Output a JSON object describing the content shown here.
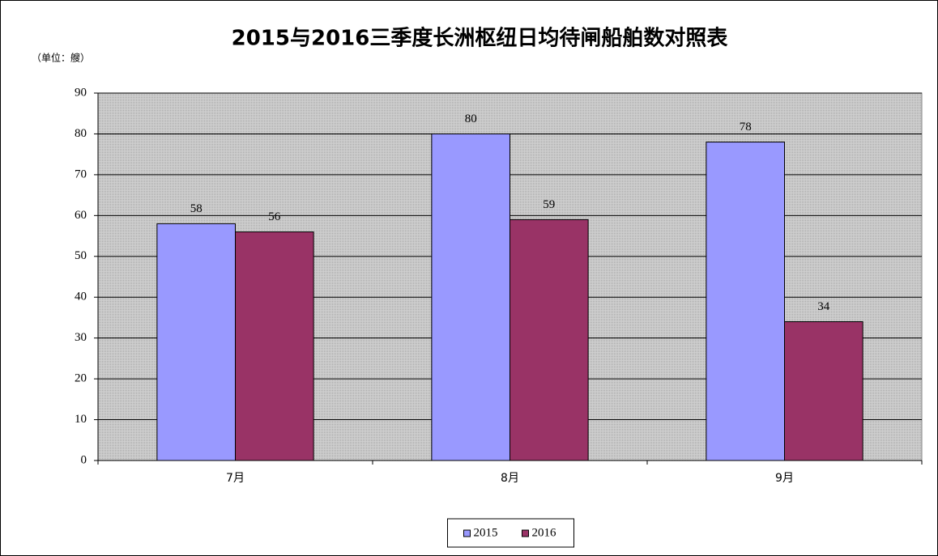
{
  "chart_data": {
    "type": "bar",
    "title": "2015与2016三季度长洲枢纽日均待闸船舶数对照表",
    "unit_label": "（单位：艘）",
    "categories": [
      "7月",
      "8月",
      "9月"
    ],
    "series": [
      {
        "name": "2015",
        "color": "#9999ff",
        "values": [
          58,
          80,
          78
        ]
      },
      {
        "name": "2016",
        "color": "#993366",
        "values": [
          56,
          59,
          34
        ]
      }
    ],
    "ylim": [
      0,
      90
    ],
    "yticks": [
      0,
      10,
      20,
      30,
      40,
      50,
      60,
      70,
      80,
      90
    ],
    "grid": true,
    "legend": "bottom"
  }
}
